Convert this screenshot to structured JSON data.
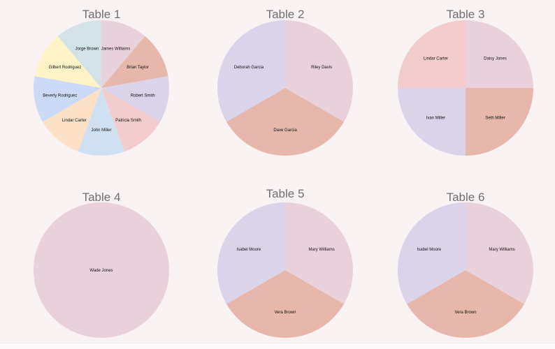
{
  "colors": {
    "background": "#f9f2f3",
    "title": "#6f6f6f",
    "palette": {
      "pink": "#e9d1dc",
      "salmon": "#e7b7ac",
      "lavender": "#dad3e9",
      "blush": "#f2cccc",
      "sky": "#cfe0f3",
      "peach": "#fde1c7",
      "periwinkle": "#cbdaf6",
      "cream": "#fdf3c7",
      "mist": "#d3e2e6"
    }
  },
  "chart_data": [
    {
      "type": "pie",
      "title": "Table 1",
      "start_angle_deg": 0,
      "slices": [
        {
          "label": "James Williams",
          "value": 1,
          "color": "#e9d1dc"
        },
        {
          "label": "Brian Taylor",
          "value": 1,
          "color": "#e7b7ac"
        },
        {
          "label": "Robert Smith",
          "value": 1,
          "color": "#dad3e9"
        },
        {
          "label": "Patricia Smith",
          "value": 1,
          "color": "#f2cccc"
        },
        {
          "label": "John Miller",
          "value": 1,
          "color": "#cfe0f3"
        },
        {
          "label": "Lindar Carter",
          "value": 1,
          "color": "#fde1c7"
        },
        {
          "label": "Beverly Rodriguez",
          "value": 1,
          "color": "#cbdaf6"
        },
        {
          "label": "Gilbert Rodriguez",
          "value": 1,
          "color": "#fdf3c7"
        },
        {
          "label": "Jorge Brown",
          "value": 1,
          "color": "#d3e2e6"
        }
      ]
    },
    {
      "type": "pie",
      "title": "Table 2",
      "start_angle_deg": 0,
      "slices": [
        {
          "label": "Riley Davis",
          "value": 1,
          "color": "#e9d1dc"
        },
        {
          "label": "Dave Garcia",
          "value": 1,
          "color": "#e7b7ac"
        },
        {
          "label": "Deborah Garcia",
          "value": 1,
          "color": "#dad3e9"
        }
      ]
    },
    {
      "type": "pie",
      "title": "Table 3",
      "start_angle_deg": 0,
      "slices": [
        {
          "label": "Daisy Jones",
          "value": 1,
          "color": "#e9d1dc"
        },
        {
          "label": "Seth Miller",
          "value": 1,
          "color": "#e7b7ac"
        },
        {
          "label": "Ivan Miller",
          "value": 1,
          "color": "#dad3e9"
        },
        {
          "label": "Lindar Carter",
          "value": 1,
          "color": "#f2cccc"
        }
      ]
    },
    {
      "type": "pie",
      "title": "Table 4",
      "start_angle_deg": 0,
      "slices": [
        {
          "label": "Wade Jones",
          "value": 1,
          "color": "#e9d1dc"
        }
      ]
    },
    {
      "type": "pie",
      "title": "Table 5",
      "start_angle_deg": 0,
      "slices": [
        {
          "label": "Mary Williams",
          "value": 1,
          "color": "#e9d1dc"
        },
        {
          "label": "Vera Brown",
          "value": 1,
          "color": "#e7b7ac"
        },
        {
          "label": "Isabel Moore",
          "value": 1,
          "color": "#dad3e9"
        }
      ]
    },
    {
      "type": "pie",
      "title": "Table 6",
      "start_angle_deg": 0,
      "slices": [
        {
          "label": "Mary Williams",
          "value": 1,
          "color": "#e9d1dc"
        },
        {
          "label": "Vera Brown",
          "value": 1,
          "color": "#e7b7ac"
        },
        {
          "label": "Isabel Moore",
          "value": 1,
          "color": "#dad3e9"
        }
      ]
    }
  ]
}
